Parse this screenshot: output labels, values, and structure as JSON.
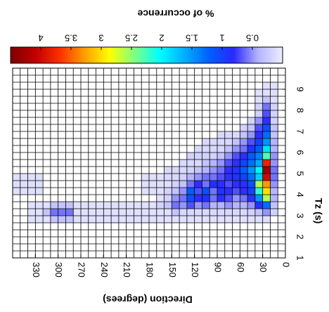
{
  "chart_data": {
    "type": "heatmap",
    "title": "% of occurrence",
    "x_label": "Direction (degrees)",
    "y_label": "Tz (s)",
    "x": [
      0,
      10,
      20,
      30,
      40,
      50,
      60,
      70,
      80,
      90,
      100,
      110,
      120,
      130,
      140,
      150,
      160,
      170,
      180,
      190,
      200,
      210,
      220,
      230,
      240,
      250,
      260,
      270,
      280,
      290,
      300,
      310,
      320,
      330,
      340,
      350
    ],
    "y": [
      2.67,
      3,
      3.33,
      3.67,
      4,
      4.33,
      4.67,
      5,
      5.33,
      5.67,
      6,
      6.33,
      6.67,
      7,
      7.33,
      7.67,
      8,
      8.33,
      8.67,
      9
    ],
    "values": [
      [
        null,
        null,
        0.1,
        0.1,
        0.1,
        0.1,
        0.1,
        0.1,
        0.1,
        0.1,
        0.1,
        0.1,
        0.1,
        0.1,
        0.1,
        0.1,
        0.1,
        0.1,
        0.1,
        0.1,
        0.1,
        0.1,
        0.1,
        0.1,
        0.1,
        0.1,
        0.1,
        0.1,
        0.3,
        0.3,
        0.3,
        0.1,
        0.1,
        0.1,
        null,
        null
      ],
      [
        null,
        0.2,
        0.5,
        0.3,
        0.2,
        0.15,
        0.15,
        0.15,
        0.15,
        0.15,
        0.15,
        0.15,
        0.15,
        0.15,
        0.3,
        0.1,
        0.1,
        0.1,
        0.1,
        0.1,
        0.1,
        0.1,
        0.1,
        0.1,
        0.1,
        0.1,
        0.1,
        0.1,
        0.6,
        0.6,
        0.6,
        0.3,
        0.1,
        0.1,
        null,
        null
      ],
      [
        null,
        0.3,
        1.3,
        0.9,
        0.5,
        0.4,
        0.4,
        0.5,
        0.4,
        0.4,
        0.6,
        0.5,
        0.7,
        0.5,
        0.6,
        0.3,
        0.2,
        0.1,
        0.1,
        0.1,
        0.1,
        0.1,
        0.1,
        0.1,
        0.1,
        0.1,
        0.1,
        0.1,
        0.3,
        0.3,
        0.3,
        0.1,
        0.1,
        0.1,
        null,
        null
      ],
      [
        null,
        0.4,
        2.6,
        1.5,
        0.8,
        0.6,
        0.5,
        0.7,
        0.8,
        0.6,
        0.9,
        0.8,
        1.1,
        0.6,
        0.5,
        0.2,
        0.1,
        null,
        null,
        null,
        null,
        null,
        null,
        null,
        null,
        null,
        null,
        null,
        null,
        null,
        null,
        null,
        null,
        null,
        null,
        null
      ],
      [
        null,
        0.4,
        3.0,
        2.2,
        1.0,
        0.8,
        0.7,
        0.8,
        0.9,
        0.6,
        1.1,
        0.7,
        1.2,
        0.5,
        0.3,
        0.2,
        0.1,
        0.1,
        0.1,
        null,
        null,
        null,
        null,
        null,
        null,
        null,
        null,
        null,
        null,
        null,
        null,
        null,
        0.1,
        0.1,
        0.1,
        0.1
      ],
      [
        null,
        0.5,
        3.3,
        2.6,
        1.1,
        0.8,
        0.8,
        0.7,
        0.8,
        0.9,
        0.6,
        0.8,
        0.6,
        0.3,
        0.2,
        0.1,
        0.1,
        0.1,
        0.1,
        null,
        null,
        null,
        null,
        null,
        null,
        null,
        null,
        null,
        null,
        null,
        null,
        null,
        0.1,
        0.1,
        0.1,
        0.1
      ],
      [
        null,
        0.6,
        4.0,
        1.8,
        1.3,
        1.0,
        0.9,
        0.8,
        0.7,
        0.6,
        0.6,
        0.5,
        0.4,
        0.2,
        0.15,
        0.15,
        0.1,
        0.1,
        0.1,
        null,
        null,
        null,
        null,
        null,
        null,
        null,
        null,
        null,
        null,
        null,
        null,
        null,
        0.1,
        0.1,
        0.1,
        0.1
      ],
      [
        null,
        0.6,
        4.3,
        2.0,
        1.5,
        1.2,
        0.9,
        0.8,
        0.6,
        0.5,
        0.4,
        0.3,
        0.2,
        0.15,
        0.15,
        0.15,
        null,
        null,
        null,
        null,
        null,
        null,
        null,
        null,
        null,
        null,
        null,
        null,
        null,
        null,
        null,
        null,
        null,
        null,
        null,
        null
      ],
      [
        null,
        0.5,
        3.8,
        1.6,
        1.3,
        1.0,
        0.8,
        0.7,
        0.5,
        0.4,
        0.3,
        0.15,
        0.15,
        0.15,
        null,
        null,
        null,
        null,
        null,
        null,
        null,
        null,
        null,
        null,
        null,
        null,
        null,
        null,
        null,
        null,
        null,
        null,
        null,
        null,
        null,
        null
      ],
      [
        null,
        0.5,
        2.3,
        1.4,
        1.2,
        0.8,
        0.7,
        0.5,
        0.3,
        0.2,
        0.2,
        0.2,
        0.2,
        null,
        null,
        null,
        null,
        null,
        null,
        null,
        null,
        null,
        null,
        null,
        null,
        null,
        null,
        null,
        null,
        null,
        null,
        null,
        null,
        null,
        null,
        null
      ],
      [
        null,
        0.4,
        1.9,
        1.2,
        0.9,
        0.6,
        0.5,
        0.3,
        0.15,
        0.15,
        0.15,
        0.15,
        null,
        null,
        null,
        null,
        null,
        null,
        null,
        null,
        null,
        null,
        null,
        null,
        null,
        null,
        null,
        null,
        null,
        null,
        null,
        null,
        null,
        null,
        null,
        null
      ],
      [
        null,
        0.4,
        1.5,
        1.0,
        0.7,
        0.5,
        0.3,
        0.15,
        0.15,
        0.15,
        0.15,
        null,
        null,
        null,
        null,
        null,
        null,
        null,
        null,
        null,
        null,
        null,
        null,
        null,
        null,
        null,
        null,
        null,
        null,
        null,
        null,
        null,
        null,
        null,
        null,
        null
      ],
      [
        null,
        0.3,
        1.3,
        0.8,
        0.5,
        0.3,
        0.15,
        0.15,
        0.15,
        null,
        null,
        null,
        null,
        null,
        null,
        null,
        null,
        null,
        null,
        null,
        null,
        null,
        null,
        null,
        null,
        null,
        null,
        null,
        null,
        null,
        null,
        null,
        null,
        null,
        null,
        null
      ],
      [
        null,
        0.3,
        1.1,
        0.7,
        0.3,
        0.2,
        null,
        null,
        null,
        null,
        null,
        null,
        null,
        null,
        null,
        null,
        null,
        null,
        null,
        null,
        null,
        null,
        null,
        null,
        null,
        null,
        null,
        null,
        null,
        null,
        null,
        null,
        null,
        null,
        null,
        null
      ],
      [
        null,
        0.2,
        0.8,
        0.5,
        0.2,
        null,
        null,
        null,
        null,
        null,
        null,
        null,
        null,
        null,
        null,
        null,
        null,
        null,
        null,
        null,
        null,
        null,
        null,
        null,
        null,
        null,
        null,
        null,
        null,
        null,
        null,
        null,
        null,
        null,
        null,
        null
      ],
      [
        null,
        0.2,
        0.7,
        0.2,
        null,
        null,
        null,
        null,
        null,
        null,
        null,
        null,
        null,
        null,
        null,
        null,
        null,
        null,
        null,
        null,
        null,
        null,
        null,
        null,
        null,
        null,
        null,
        null,
        null,
        null,
        null,
        null,
        null,
        null,
        null,
        null
      ],
      [
        null,
        0.2,
        0.6,
        0.2,
        null,
        null,
        null,
        null,
        null,
        null,
        null,
        null,
        null,
        null,
        null,
        null,
        null,
        null,
        null,
        null,
        null,
        null,
        null,
        null,
        null,
        null,
        null,
        null,
        null,
        null,
        null,
        null,
        null,
        null,
        null,
        null
      ],
      [
        null,
        0.1,
        0.3,
        0.1,
        null,
        null,
        null,
        null,
        null,
        null,
        null,
        null,
        null,
        null,
        null,
        null,
        null,
        null,
        null,
        null,
        null,
        null,
        null,
        null,
        null,
        null,
        null,
        null,
        null,
        null,
        null,
        null,
        null,
        null,
        null,
        null
      ],
      [
        null,
        0.1,
        0.1,
        0.1,
        null,
        null,
        null,
        null,
        null,
        null,
        null,
        null,
        null,
        null,
        null,
        null,
        null,
        null,
        null,
        null,
        null,
        null,
        null,
        null,
        null,
        null,
        null,
        null,
        null,
        null,
        null,
        null,
        null,
        null,
        null,
        null
      ],
      [
        null,
        0.1,
        0.1,
        null,
        null,
        null,
        null,
        null,
        null,
        null,
        null,
        null,
        null,
        null,
        null,
        null,
        null,
        null,
        null,
        null,
        null,
        null,
        null,
        null,
        null,
        null,
        null,
        null,
        null,
        null,
        null,
        null,
        null,
        null,
        null,
        null
      ]
    ],
    "xlim": [
      0,
      360
    ],
    "x_reversed": true,
    "xticks": [
      0,
      30,
      60,
      90,
      120,
      150,
      180,
      210,
      240,
      270,
      300,
      330
    ],
    "ylim": [
      1,
      10
    ],
    "yticks": [
      1,
      2,
      3,
      4,
      5,
      6,
      7,
      8,
      9
    ],
    "colorbar": {
      "lim": [
        0,
        4.5
      ],
      "ticks": [
        0.5,
        1,
        1.5,
        2,
        2.5,
        3,
        3.5,
        4
      ],
      "colormap": [
        "#eeeeff",
        "#b4b4ff",
        "#2828ff",
        "#0060ff",
        "#00b0ff",
        "#00ffff",
        "#80ff80",
        "#ffff00",
        "#ffa000",
        "#ff3000",
        "#c00000",
        "#800000"
      ]
    }
  }
}
